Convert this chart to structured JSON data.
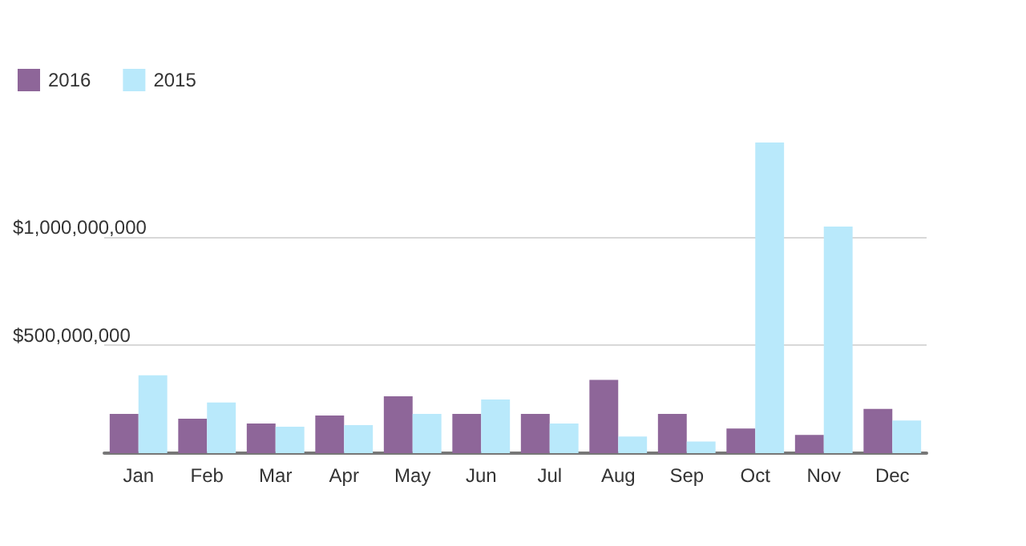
{
  "chart_data": {
    "type": "bar",
    "categories": [
      "Jan",
      "Feb",
      "Mar",
      "Apr",
      "May",
      "Jun",
      "Jul",
      "Aug",
      "Sep",
      "Oct",
      "Nov",
      "Dec"
    ],
    "series": [
      {
        "name": "2016",
        "color": "#8e6699",
        "values": [
          181000000,
          159000000,
          137000000,
          174000000,
          263000000,
          181000000,
          181000000,
          338000000,
          181000000,
          114000000,
          84000000,
          204000000
        ]
      },
      {
        "name": "2015",
        "color": "#b9e9fb",
        "values": [
          360000000,
          234000000,
          122000000,
          129000000,
          181000000,
          248000000,
          137000000,
          77000000,
          54000000,
          1435000000,
          1047000000,
          151000000
        ]
      }
    ],
    "yticks": [
      {
        "value": 0,
        "label": null
      },
      {
        "value": 500000000,
        "label": "$500,000,000"
      },
      {
        "value": 1000000000,
        "label": "$1,000,000,000"
      }
    ],
    "ylim": [
      0,
      1435000000
    ],
    "grid": "y",
    "legend": "top left"
  }
}
